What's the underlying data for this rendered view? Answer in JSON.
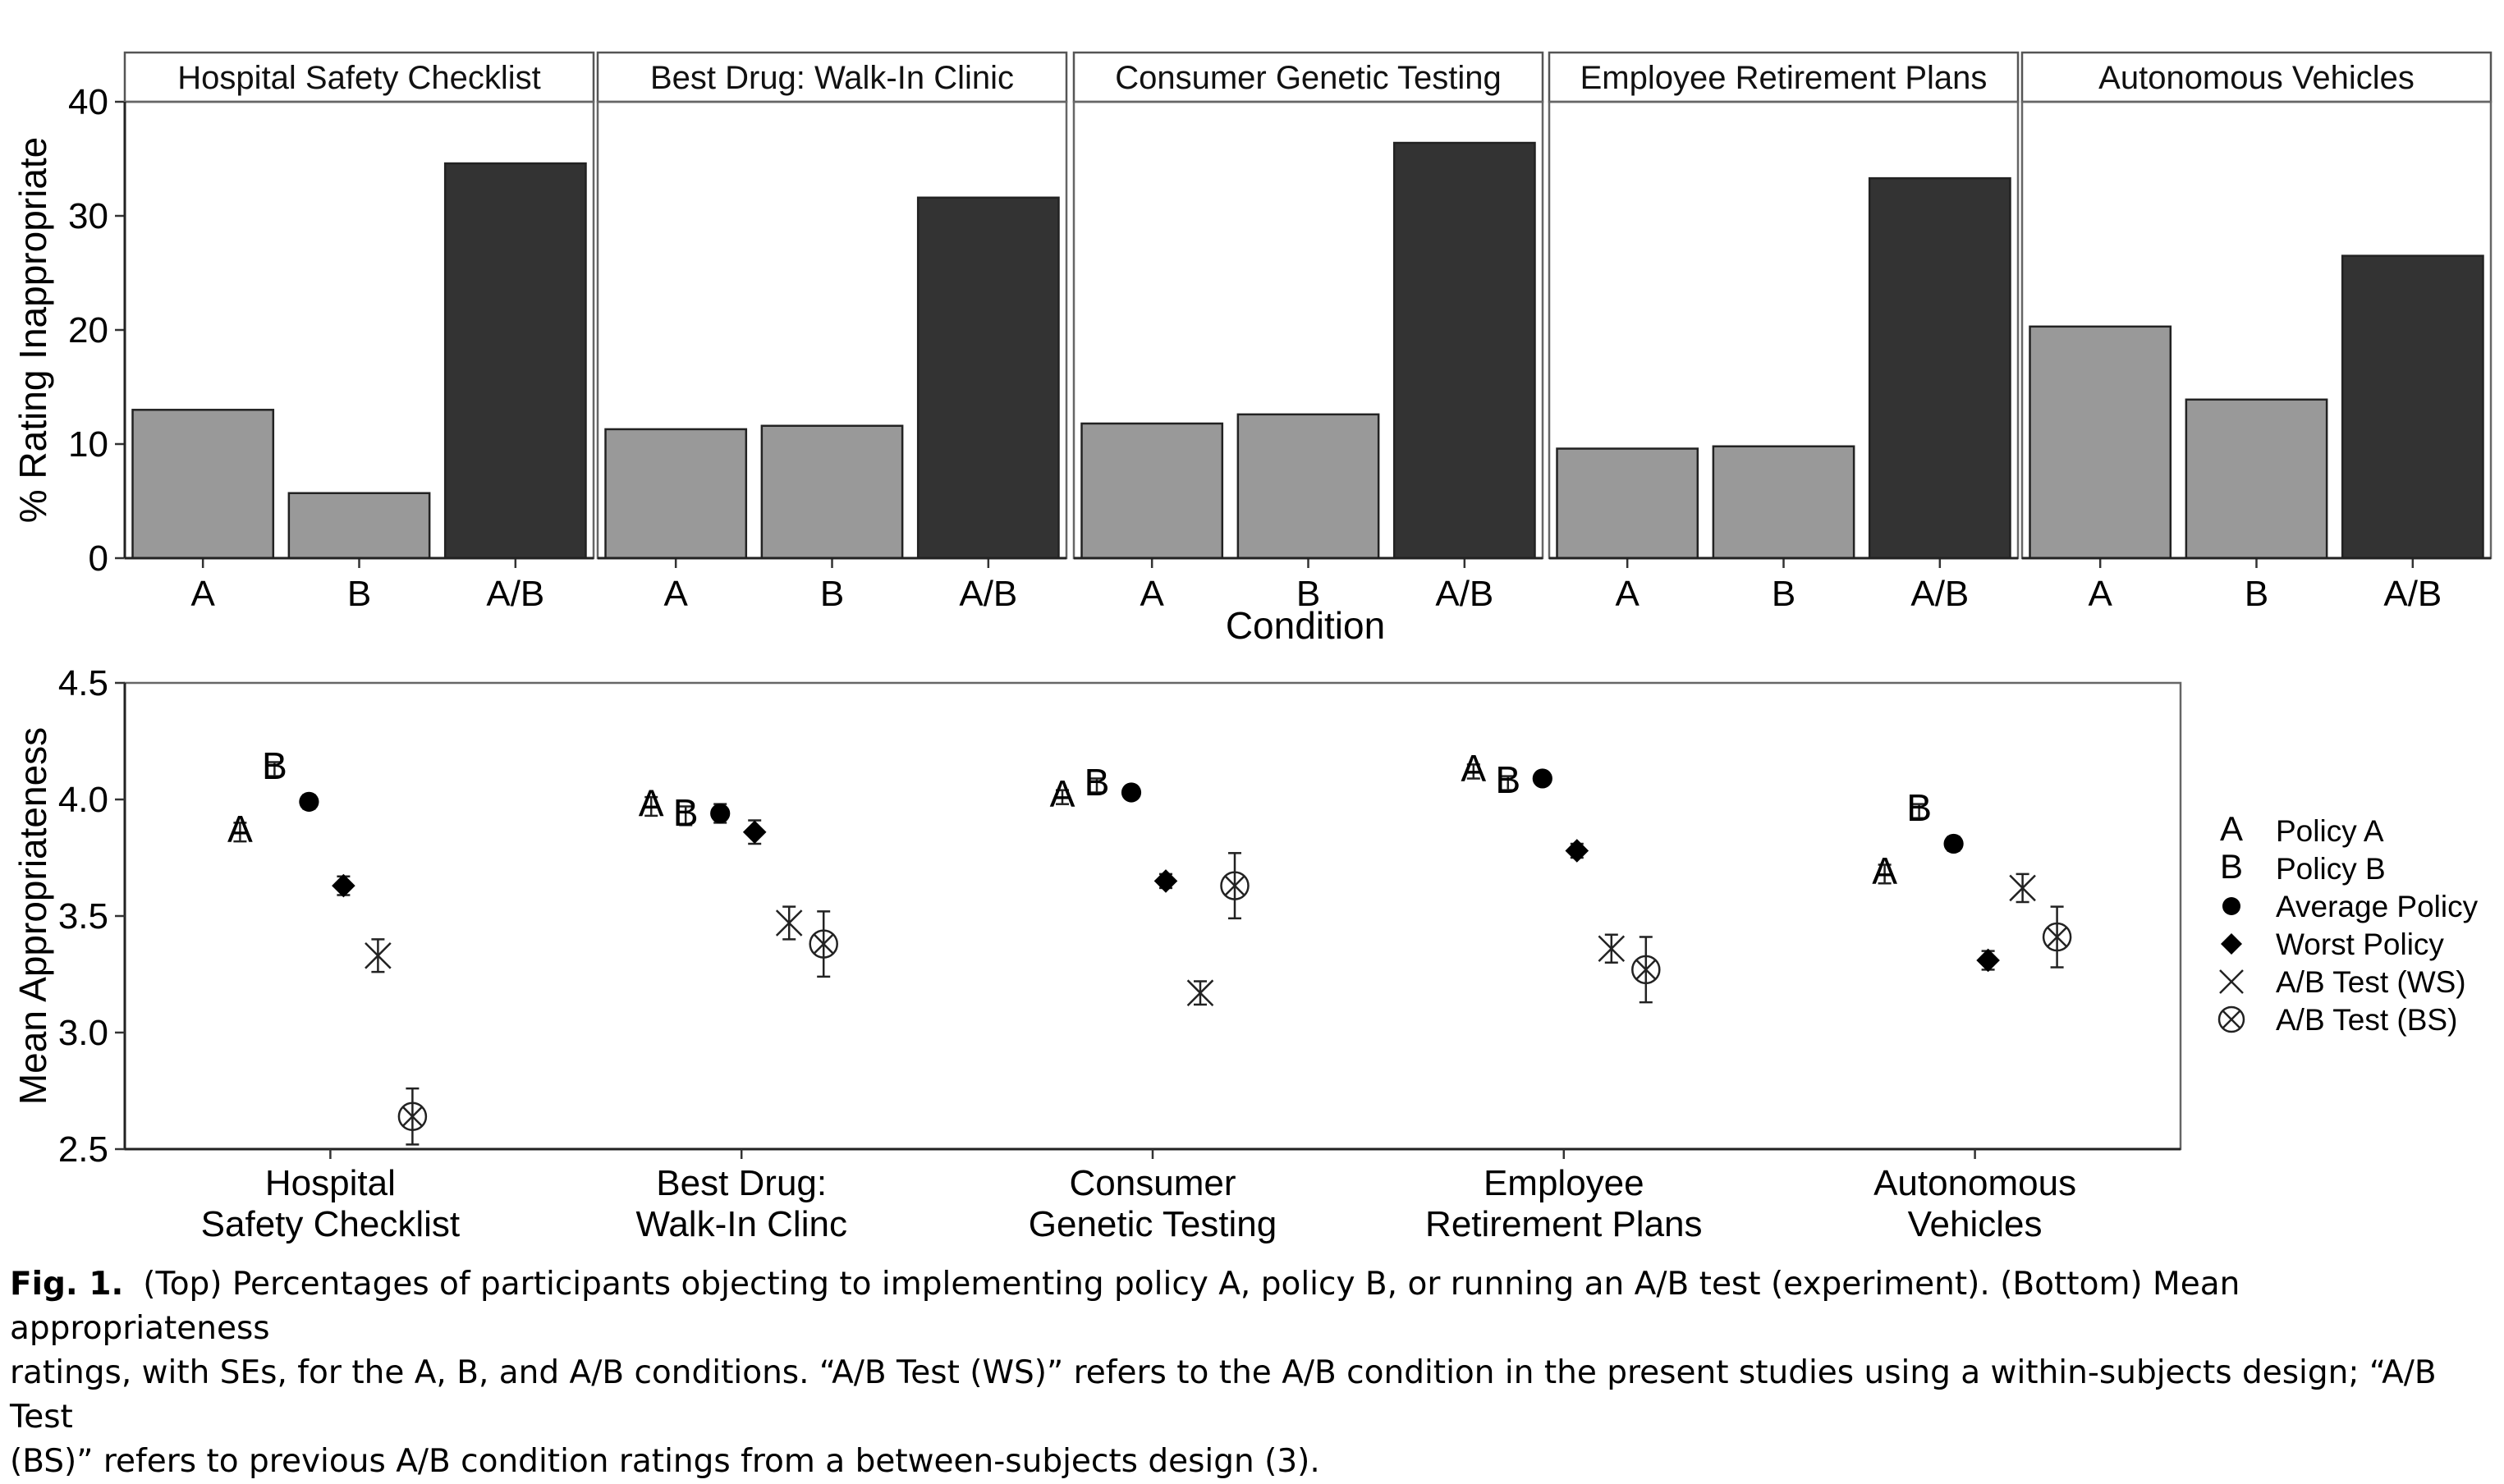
{
  "chart_data": [
    {
      "type": "bar",
      "facets": [
        "Hospital Safety Checklist",
        "Best Drug: Walk-In Clinic",
        "Consumer Genetic Testing",
        "Employee Retirement Plans",
        "Autonomous Vehicles"
      ],
      "categories": [
        "A",
        "B",
        "A/B"
      ],
      "values": [
        [
          13.0,
          5.7,
          34.6
        ],
        [
          11.3,
          11.6,
          31.6
        ],
        [
          11.8,
          12.6,
          36.4
        ],
        [
          9.6,
          9.8,
          33.3
        ],
        [
          20.3,
          13.9,
          26.5
        ]
      ],
      "colors": {
        "A": "#999999",
        "B": "#999999",
        "A/B": "#333333"
      },
      "xlabel": "Condition",
      "ylabel": "% Rating Inappropriate",
      "ylim": [
        0,
        40
      ],
      "yticks": [
        "0",
        "10",
        "20",
        "30",
        "40"
      ],
      "grid": false
    },
    {
      "type": "scatter",
      "categories": [
        [
          "Hospital",
          "Safety Checklist"
        ],
        [
          "Best Drug:",
          "Walk-In Clinc"
        ],
        [
          "Consumer",
          "Genetic Testing"
        ],
        [
          "Employee",
          "Retirement Plans"
        ],
        [
          "Autonomous",
          "Vehicles"
        ]
      ],
      "ylabel": "Mean Appropriateness",
      "ylim": [
        2.5,
        4.5
      ],
      "yticks": [
        "2.5",
        "3.0",
        "3.5",
        "4.0",
        "4.5"
      ],
      "legend_position": "right",
      "grid": false,
      "series": [
        {
          "name": "Policy A",
          "marker": "A",
          "values": [
            3.86,
            3.97,
            4.01,
            4.12,
            3.68
          ],
          "se": [
            0.04,
            0.04,
            0.03,
            0.03,
            0.04
          ]
        },
        {
          "name": "Policy B",
          "marker": "B",
          "values": [
            4.13,
            3.93,
            4.06,
            4.07,
            3.95
          ],
          "se": [
            0.03,
            0.04,
            0.03,
            0.03,
            0.03
          ]
        },
        {
          "name": "Average Policy",
          "marker": "circle",
          "values": [
            3.99,
            3.94,
            4.03,
            4.09,
            3.81
          ],
          "se": [
            0.03,
            0.04,
            0.02,
            0.02,
            0.03
          ]
        },
        {
          "name": "Worst Policy",
          "marker": "diamond",
          "values": [
            3.63,
            3.86,
            3.65,
            3.78,
            3.31
          ],
          "se": [
            0.04,
            0.05,
            0.03,
            0.03,
            0.04
          ]
        },
        {
          "name": "A/B Test (WS)",
          "marker": "x",
          "values": [
            3.33,
            3.47,
            3.17,
            3.36,
            3.62
          ],
          "se": [
            0.07,
            0.07,
            0.05,
            0.06,
            0.06
          ]
        },
        {
          "name": "A/B Test (BS)",
          "marker": "circle-x",
          "values": [
            2.64,
            3.38,
            3.63,
            3.27,
            3.41
          ],
          "se": [
            0.12,
            0.14,
            0.14,
            0.14,
            0.13
          ]
        }
      ]
    }
  ],
  "caption": {
    "label": "Fig. 1.",
    "lines": [
      "(Top) Percentages of participants objecting to implementing policy A, policy B, or running an A/B test (experiment). (Bottom) Mean appropriateness",
      "ratings, with SEs, for the A, B, and A/B conditions. “A/B Test (WS)” refers to the A/B condition in the present studies using a within-subjects design; “A/B Test",
      "(BS)” refers to previous A/B condition ratings from a between-subjects design (3)."
    ]
  }
}
